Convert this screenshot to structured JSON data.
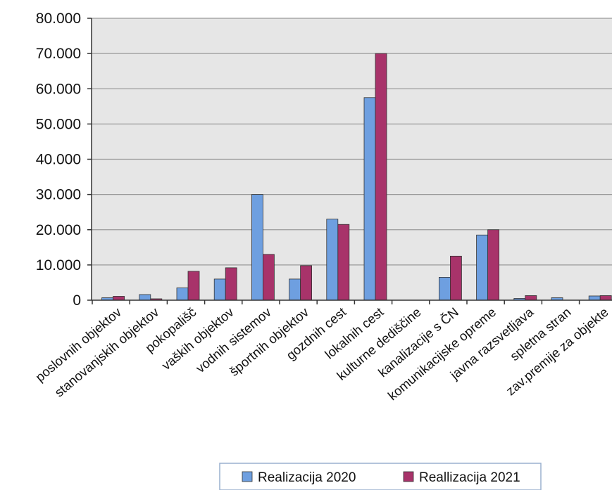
{
  "chart_data": {
    "type": "bar",
    "categories": [
      "poslovnih objektov",
      "stanovanjskih objektov",
      "pokopališč",
      "vaških objektov",
      "vodnih sistemov",
      "športnih objektov",
      "gozdnih cest",
      "lokalnih cest",
      "kulturne dediščine",
      "kanalizacije s ČN",
      "komunikacijske opreme",
      "javna razsvetljava",
      "spletna stran",
      "zav.premije za objekte"
    ],
    "series": [
      {
        "name": "Realizacija 2020",
        "color": "#6e9fe0",
        "values": [
          700,
          1600,
          3500,
          6000,
          30000,
          6000,
          23000,
          57500,
          0,
          6500,
          18500,
          500,
          700,
          1200
        ]
      },
      {
        "name": "Reallizacija 2021",
        "color": "#a8336a",
        "values": [
          1100,
          400,
          8200,
          9200,
          13000,
          9800,
          21500,
          70000,
          0,
          12500,
          20000,
          1300,
          0,
          1300
        ]
      }
    ],
    "ylim": [
      0,
      80000
    ],
    "yticks": [
      0,
      10000,
      20000,
      30000,
      40000,
      50000,
      60000,
      70000,
      80000
    ],
    "ytick_labels": [
      "0",
      "10.000",
      "20.000",
      "30.000",
      "40.000",
      "50.000",
      "60.000",
      "70.000",
      "80.000"
    ],
    "grid": true,
    "legend_position": "bottom",
    "plot_background": "#e6e6e6"
  }
}
